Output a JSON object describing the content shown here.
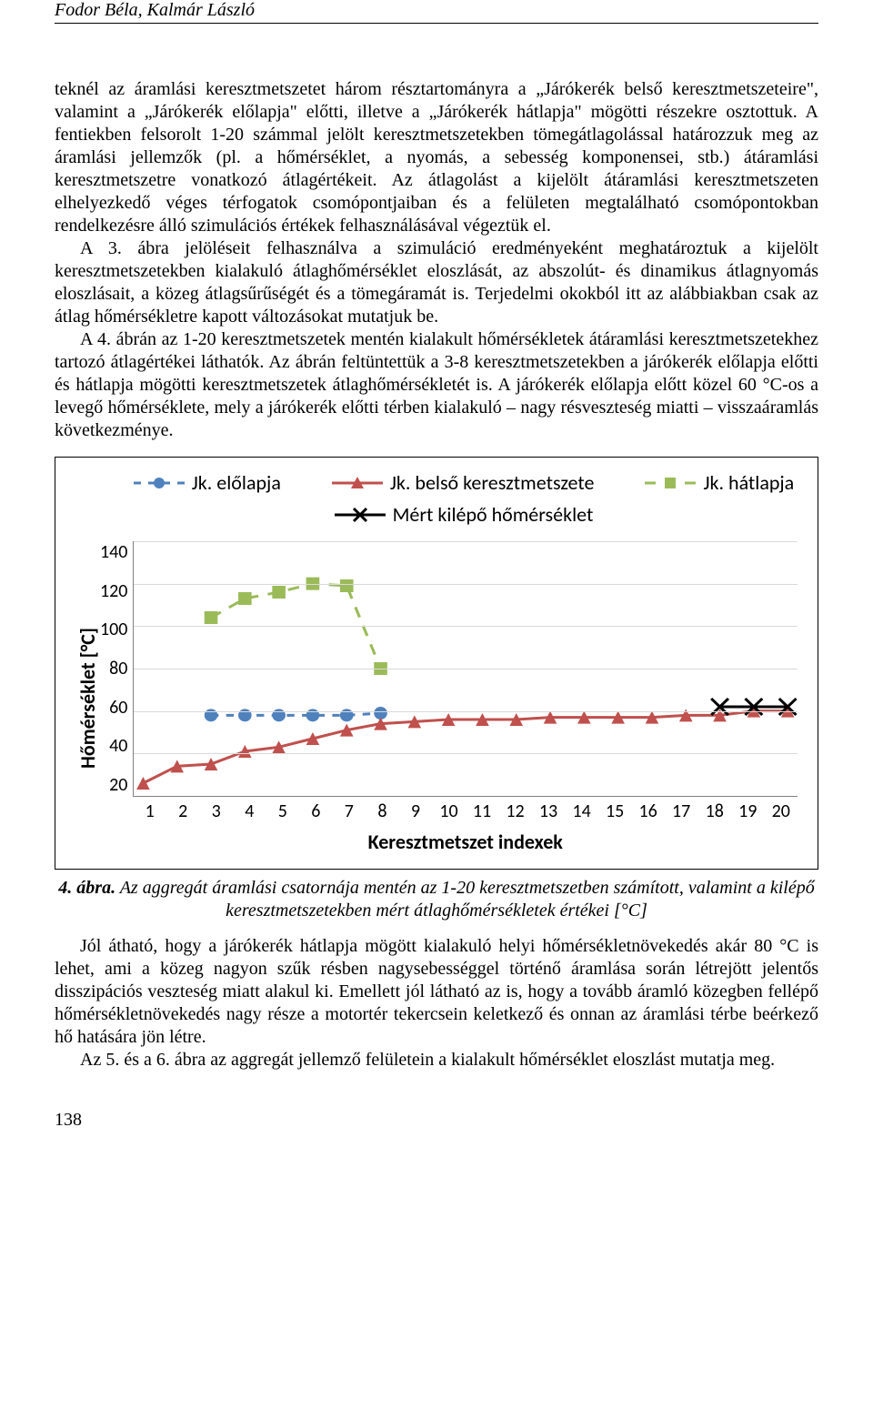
{
  "header": "Fodor Béla, Kalmár László",
  "para1": "teknél az áramlási keresztmetszetet három résztartományra a „Járókerék belső keresztmetszeteire\", valamint a „Járókerék előlapja\" előtti, illetve a „Járókerék hátlapja\" mögötti részekre osztottuk. A fentiekben felsorolt 1-20 számmal jelölt keresztmetszetekben tömegátlagolással határozzuk meg az áramlási jellemzők (pl. a hőmérséklet, a nyomás, a sebesség komponensei, stb.) átáramlási keresztmetszetre vonatkozó átlagértékeit. Az átlagolást a kijelölt átáramlási keresztmetszeten elhelyezkedő véges térfogatok csomópontjaiban és a felületen megtalálható csomópontokban rendelkezésre álló szimulációs értékek felhasználásával végeztük el.",
  "para2": "A 3. ábra jelöléseit felhasználva a szimuláció eredményeként meghatároztuk a kijelölt keresztmetszetekben kialakuló átlaghőmérséklet eloszlását, az abszolút- és dinamikus átlagnyomás eloszlásait, a közeg átlagsűrűségét és a tömegáramát is. Terjedelmi okokból itt az alábbiakban csak az átlag hőmérsékletre kapott változásokat mutatjuk be.",
  "para3": "A 4. ábrán az 1-20 keresztmetszetek mentén kialakult hőmérsékletek átáramlási keresztmetszetekhez tartozó átlagértékei láthatók. Az ábrán feltüntettük a 3-8 keresztmetszetekben a járókerék előlapja előtti és hátlapja mögötti keresztmetszetek átlaghőmérsékletét is. A járókerék előlapja előtt közel 60 °C-os a levegő hőmérséklete, mely a járókerék előtti térben kialakuló – nagy résveszteség miatti – visszaáramlás következménye.",
  "caption_bold": "4. ábra.",
  "caption_rest": " Az aggregát áramlási csatornája mentén az 1-20 keresztmetszetben számított, valamint a kilépő keresztmetszetekben mért átlaghőmérsékletek értékei [°C]",
  "para4": "Jól átható, hogy a járókerék hátlapja mögött kialakuló helyi hőmérsékletnövekedés akár 80 °C is lehet, ami a közeg nagyon szűk résben nagysebességgel történő áramlása során létrejött jelentős disszipációs veszteség miatt alakul ki. Emellett jól látható az is, hogy a tovább áramló közegben fellépő hőmérsékletnövekedés nagy része a motortér tekercsein keletkező és onnan az áramlási térbe beérkező hő hatására jön létre.",
  "para5": "Az 5. és a 6. ábra az aggregát jellemző felületein a kialakult hőmérséklet eloszlást mutatja meg.",
  "page_num": "138",
  "chart": {
    "type": "line",
    "legend": {
      "s1": "Jk. előlapja",
      "s2": "Jk. belső keresztmetszete",
      "s3": "Jk. hátlapja",
      "s4": "Mért kilépő hőmérséklet"
    },
    "y_label": "Hőmérséklet [°C]",
    "x_label": "Keresztmetszet indexek",
    "y_ticks": [
      20,
      40,
      60,
      80,
      100,
      120,
      140
    ],
    "x_ticks": [
      1,
      2,
      3,
      4,
      5,
      6,
      7,
      8,
      9,
      10,
      11,
      12,
      13,
      14,
      15,
      16,
      17,
      18,
      19,
      20
    ],
    "ylim": [
      20,
      140
    ],
    "xlim": [
      1,
      20
    ],
    "colors": {
      "s1": "#4f81bd",
      "s2": "#c0504d",
      "s3": "#9bbb59",
      "s4": "#000000",
      "grid": "#d9d9d9",
      "axis": "#808080"
    },
    "line_width": 3,
    "marker_size": 7,
    "series": {
      "s1": {
        "x": [
          3,
          4,
          5,
          6,
          7,
          8
        ],
        "y": [
          58,
          58,
          58,
          58,
          58,
          59
        ],
        "marker": "circle",
        "dash": "8 8"
      },
      "s2": {
        "x": [
          1,
          2,
          3,
          4,
          5,
          6,
          7,
          8,
          9,
          10,
          11,
          12,
          13,
          14,
          15,
          16,
          17,
          18,
          19,
          20
        ],
        "y": [
          26,
          34,
          35,
          41,
          43,
          47,
          51,
          54,
          55,
          56,
          56,
          56,
          57,
          57,
          57,
          57,
          58,
          58,
          60,
          60
        ],
        "marker": "triangle",
        "dash": "none"
      },
      "s3": {
        "x": [
          3,
          4,
          5,
          6,
          7,
          8
        ],
        "y": [
          104,
          113,
          116,
          120,
          119,
          80
        ],
        "marker": "square",
        "dash": "12 10"
      },
      "s4": {
        "x": [
          18,
          19,
          20
        ],
        "y": [
          62,
          62,
          62
        ],
        "marker": "x",
        "dash": "none"
      }
    }
  }
}
